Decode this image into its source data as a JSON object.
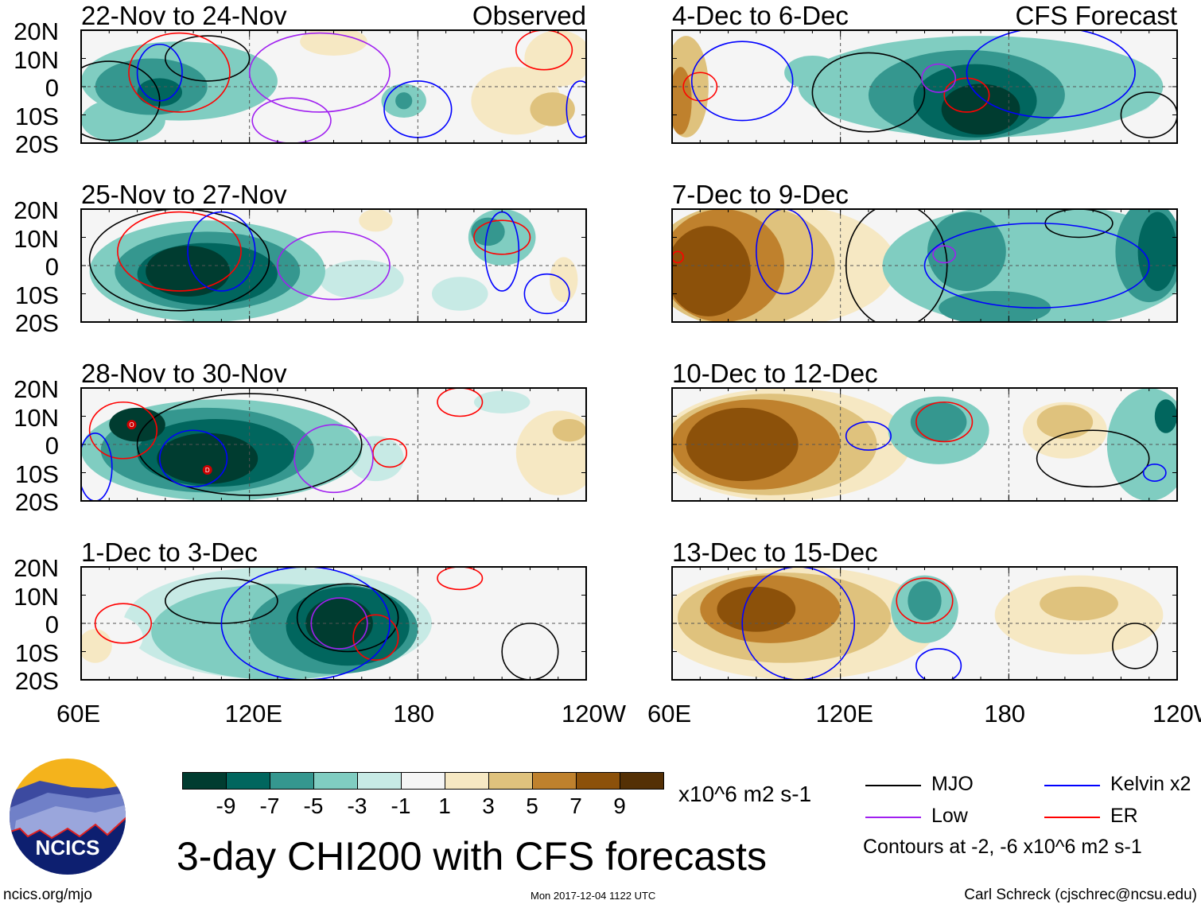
{
  "lat_labels": [
    "20N",
    "10N",
    "0",
    "10S",
    "20S"
  ],
  "lon_labels": [
    "60E",
    "120E",
    "180",
    "120W"
  ],
  "panels": [
    {
      "title": "22-Nov to 24-Nov",
      "tag": "Observed",
      "blobs": [
        [
          95,
          2,
          35,
          14,
          -3
        ],
        [
          85,
          0,
          20,
          10,
          -5
        ],
        [
          88,
          -2,
          8,
          5,
          -7
        ],
        [
          75,
          -12,
          15,
          8,
          -3
        ],
        [
          170,
          12,
          12,
          7,
          1
        ],
        [
          150,
          16,
          12,
          5,
          3
        ],
        [
          230,
          10,
          12,
          10,
          3
        ],
        [
          215,
          -5,
          16,
          12,
          3
        ],
        [
          228,
          -8,
          8,
          6,
          5
        ],
        [
          175,
          -5,
          8,
          6,
          -3
        ],
        [
          175,
          -5,
          3,
          3,
          -5
        ]
      ],
      "contours": [
        [
          "mjo",
          70,
          -5,
          18,
          14
        ],
        [
          "mjo",
          105,
          10,
          15,
          8
        ],
        [
          "er",
          95,
          5,
          18,
          14
        ],
        [
          "er",
          225,
          13,
          10,
          7
        ],
        [
          "kelvin",
          88,
          5,
          8,
          10
        ],
        [
          "kelvin",
          180,
          -8,
          12,
          10
        ],
        [
          "kelvin",
          238,
          -8,
          5,
          10
        ],
        [
          "low",
          145,
          5,
          25,
          14
        ],
        [
          "low",
          135,
          -12,
          14,
          8
        ]
      ],
      "markers": []
    },
    {
      "title": "25-Nov to 27-Nov",
      "tag": "",
      "blobs": [
        [
          105,
          -2,
          42,
          18,
          -3
        ],
        [
          105,
          -2,
          33,
          14,
          -5
        ],
        [
          105,
          -3,
          25,
          11,
          -7
        ],
        [
          98,
          -2,
          15,
          9,
          -9
        ],
        [
          195,
          -10,
          10,
          6,
          -1
        ],
        [
          160,
          -5,
          15,
          7,
          -1
        ],
        [
          165,
          16,
          6,
          4,
          3
        ],
        [
          210,
          10,
          12,
          10,
          -3
        ],
        [
          205,
          12,
          6,
          5,
          -5
        ],
        [
          232,
          -5,
          5,
          8,
          3
        ],
        [
          230,
          12,
          5,
          6,
          1
        ]
      ],
      "contours": [
        [
          "mjo",
          95,
          2,
          32,
          18
        ],
        [
          "er",
          95,
          5,
          22,
          14
        ],
        [
          "er",
          210,
          10,
          10,
          6
        ],
        [
          "kelvin",
          110,
          5,
          12,
          14
        ],
        [
          "kelvin",
          210,
          5,
          6,
          14
        ],
        [
          "kelvin",
          226,
          -10,
          8,
          7
        ],
        [
          "low",
          150,
          0,
          20,
          12
        ]
      ],
      "markers": []
    },
    {
      "title": "28-Nov to 30-Nov",
      "tag": "",
      "blobs": [
        [
          110,
          -2,
          50,
          18,
          -3
        ],
        [
          105,
          -2,
          38,
          15,
          -5
        ],
        [
          108,
          -3,
          28,
          12,
          -7
        ],
        [
          105,
          -5,
          18,
          9,
          -9
        ],
        [
          80,
          7,
          10,
          6,
          -9
        ],
        [
          165,
          -5,
          10,
          8,
          -1
        ],
        [
          210,
          15,
          10,
          4,
          -1
        ],
        [
          230,
          -3,
          15,
          15,
          3
        ],
        [
          234,
          5,
          6,
          4,
          5
        ]
      ],
      "contours": [
        [
          "mjo",
          120,
          0,
          40,
          18
        ],
        [
          "er",
          75,
          5,
          12,
          10
        ],
        [
          "er",
          195,
          15,
          8,
          5
        ],
        [
          "er",
          170,
          -3,
          6,
          5
        ],
        [
          "kelvin",
          100,
          -5,
          12,
          10
        ],
        [
          "kelvin",
          65,
          -8,
          6,
          12
        ],
        [
          "low",
          150,
          -5,
          14,
          12
        ]
      ],
      "markers": [
        [
          78,
          7,
          "O"
        ],
        [
          105,
          -9,
          "D"
        ]
      ]
    },
    {
      "title": "1-Dec to 3-Dec",
      "tag": "",
      "blobs": [
        [
          130,
          0,
          55,
          20,
          -1
        ],
        [
          130,
          -3,
          45,
          17,
          -3
        ],
        [
          150,
          -2,
          30,
          16,
          -5
        ],
        [
          155,
          -1,
          22,
          14,
          -7
        ],
        [
          152,
          0,
          12,
          9,
          -9
        ],
        [
          70,
          -5,
          12,
          8,
          1
        ],
        [
          65,
          -8,
          6,
          6,
          3
        ],
        [
          210,
          3,
          16,
          8,
          1
        ]
      ],
      "contours": [
        [
          "mjo",
          110,
          8,
          20,
          8
        ],
        [
          "mjo",
          155,
          2,
          18,
          12
        ],
        [
          "mjo",
          220,
          -10,
          10,
          10
        ],
        [
          "er",
          75,
          0,
          10,
          7
        ],
        [
          "er",
          165,
          -5,
          8,
          8
        ],
        [
          "er",
          195,
          16,
          8,
          4
        ],
        [
          "kelvin",
          140,
          0,
          30,
          20
        ],
        [
          "low",
          152,
          0,
          10,
          9
        ]
      ],
      "markers": []
    },
    {
      "title": "4-Dec to 6-Dec",
      "tag": "CFS Forecast",
      "blobs": [
        [
          85,
          0,
          28,
          18,
          1
        ],
        [
          65,
          0,
          8,
          18,
          5
        ],
        [
          63,
          -5,
          4,
          12,
          7
        ],
        [
          110,
          5,
          10,
          6,
          -3
        ],
        [
          170,
          0,
          65,
          18,
          -3
        ],
        [
          165,
          -3,
          35,
          16,
          -5
        ],
        [
          168,
          -5,
          22,
          13,
          -7
        ],
        [
          170,
          -8,
          14,
          9,
          -9
        ],
        [
          225,
          -5,
          6,
          4,
          -1
        ]
      ],
      "contours": [
        [
          "mjo",
          130,
          -2,
          20,
          14
        ],
        [
          "mjo",
          230,
          -10,
          10,
          8
        ],
        [
          "er",
          70,
          0,
          6,
          5
        ],
        [
          "er",
          165,
          -3,
          8,
          6
        ],
        [
          "kelvin",
          85,
          2,
          18,
          14
        ],
        [
          "kelvin",
          195,
          5,
          30,
          16
        ],
        [
          "low",
          155,
          3,
          6,
          5
        ]
      ],
      "markers": []
    },
    {
      "title": "7-Dec to 9-Dec",
      "tag": "",
      "blobs": [
        [
          95,
          0,
          45,
          22,
          3
        ],
        [
          85,
          0,
          33,
          22,
          5
        ],
        [
          78,
          0,
          22,
          20,
          7
        ],
        [
          73,
          -2,
          15,
          16,
          9
        ],
        [
          190,
          0,
          55,
          22,
          -3
        ],
        [
          165,
          5,
          14,
          14,
          -5
        ],
        [
          230,
          5,
          12,
          18,
          -5
        ],
        [
          233,
          5,
          7,
          14,
          -7
        ],
        [
          175,
          -15,
          20,
          6,
          -5
        ]
      ],
      "contours": [
        [
          "mjo",
          140,
          0,
          18,
          22
        ],
        [
          "mjo",
          205,
          15,
          12,
          5
        ],
        [
          "kelvin",
          100,
          5,
          10,
          15
        ],
        [
          "kelvin",
          190,
          0,
          40,
          15
        ],
        [
          "er",
          62,
          3,
          2,
          2
        ],
        [
          "low",
          157,
          4,
          4,
          3
        ]
      ],
      "markers": []
    },
    {
      "title": "10-Dec to 12-Dec",
      "tag": "",
      "blobs": [
        [
          100,
          0,
          45,
          20,
          3
        ],
        [
          95,
          0,
          38,
          18,
          5
        ],
        [
          90,
          0,
          30,
          16,
          7
        ],
        [
          85,
          0,
          20,
          13,
          9
        ],
        [
          155,
          5,
          18,
          12,
          -3
        ],
        [
          155,
          8,
          10,
          7,
          -5
        ],
        [
          200,
          5,
          15,
          10,
          3
        ],
        [
          200,
          8,
          10,
          6,
          5
        ],
        [
          230,
          0,
          15,
          20,
          -3
        ],
        [
          236,
          10,
          4,
          6,
          -7
        ]
      ],
      "contours": [
        [
          "mjo",
          210,
          -5,
          20,
          10
        ],
        [
          "er",
          157,
          8,
          10,
          7
        ],
        [
          "kelvin",
          130,
          3,
          8,
          5
        ],
        [
          "kelvin",
          232,
          -10,
          4,
          3
        ]
      ],
      "markers": []
    },
    {
      "title": "13-Dec to 15-Dec",
      "tag": "",
      "blobs": [
        [
          105,
          0,
          50,
          20,
          3
        ],
        [
          100,
          2,
          38,
          16,
          5
        ],
        [
          95,
          5,
          25,
          12,
          7
        ],
        [
          90,
          5,
          14,
          8,
          9
        ],
        [
          150,
          5,
          12,
          12,
          -3
        ],
        [
          150,
          8,
          6,
          7,
          -5
        ],
        [
          205,
          3,
          30,
          14,
          3
        ],
        [
          205,
          7,
          14,
          6,
          5
        ]
      ],
      "contours": [
        [
          "er",
          150,
          8,
          10,
          8
        ],
        [
          "kelvin",
          105,
          0,
          20,
          20
        ],
        [
          "kelvin",
          155,
          -15,
          8,
          6
        ],
        [
          "mjo",
          225,
          -8,
          8,
          8
        ]
      ],
      "markers": []
    }
  ],
  "colorbar": {
    "colors": [
      "#003c30",
      "#01665e",
      "#35978f",
      "#80cdc1",
      "#c7eae5",
      "#f5f5f5",
      "#f6e8c3",
      "#dfc27d",
      "#bf812d",
      "#8c510a",
      "#543005"
    ],
    "labels": [
      "-9",
      "-7",
      "-5",
      "-3",
      "-1",
      "1",
      "3",
      "5",
      "7",
      "9"
    ],
    "units": "x10^6 m2 s-1"
  },
  "legend": {
    "items": [
      {
        "label": "MJO",
        "color": "#000000"
      },
      {
        "label": "Kelvin x2",
        "color": "#0000ff"
      },
      {
        "label": "Low",
        "color": "#a020f0"
      },
      {
        "label": "ER",
        "color": "#ff0000"
      }
    ],
    "note": "Contours at -2, -6 x10^6 m2 s-1"
  },
  "title": "3-day CHI200 with CFS forecasts",
  "logo": {
    "text": "NCICS"
  },
  "url": "ncics.org/mjo",
  "timestamp": "Mon 2017-12-04 1122 UTC",
  "credit": "Carl Schreck (cjschrec@ncsu.edu)"
}
